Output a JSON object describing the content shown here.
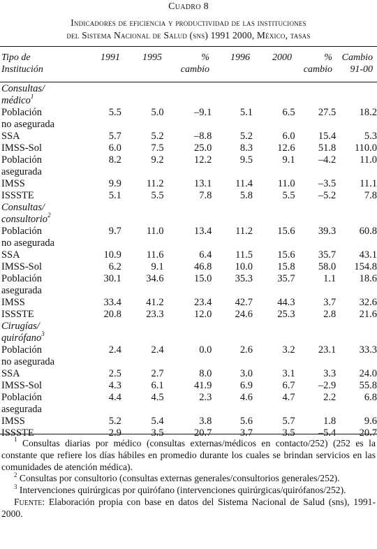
{
  "cuadro": "Cuadro 8",
  "title_line1": "Indicadores de eficiencia y productividad de las instituciones",
  "title_line2": "del Sistema Nacional de Salud (sns) 1991 2000, México, tasas",
  "headers": {
    "tipo_line1": "Tipo de",
    "tipo_line2": "Institución",
    "y1991": "1991",
    "y1995": "1995",
    "pct1_line1": "%",
    "pct1_line2": "cambio",
    "y1996": "1996",
    "y2000": "2000",
    "pct2_line1": "%",
    "pct2_line2": "cambio",
    "cambio_line1": "Cambio",
    "cambio_line2": "91-00"
  },
  "sections": [
    {
      "title_line1": "Consultas/",
      "title_line2": "médico",
      "sup": "1",
      "rows": [
        {
          "label1": "Población",
          "label2": "no asegurada",
          "values": [
            "5.5",
            "5.0",
            "–9.1",
            "5.1",
            "6.5",
            "27.5",
            "18.2"
          ]
        },
        {
          "label1": "SSA",
          "values": [
            "5.7",
            "5.2",
            "–8.8",
            "5.2",
            "6.0",
            "15.4",
            "5.3"
          ]
        },
        {
          "label1": "IMSS-Sol",
          "values": [
            "6.0",
            "7.5",
            "25.0",
            "8.3",
            "12.6",
            "51.8",
            "110.0"
          ]
        },
        {
          "label1": "Población",
          "label2": "asegurada",
          "values": [
            "8.2",
            "9.2",
            "12.2",
            "9.5",
            "9.1",
            "–4.2",
            "11.0"
          ]
        },
        {
          "label1": "IMSS",
          "values": [
            "9.9",
            "11.2",
            "13.1",
            "11.4",
            "11.0",
            "–3.5",
            "11.1"
          ]
        },
        {
          "label1": "ISSSTE",
          "values": [
            "5.1",
            "5.5",
            "7.8",
            "5.8",
            "5.5",
            "–5.2",
            "7.8"
          ]
        }
      ]
    },
    {
      "title_line1": "Consultas/",
      "title_line2": "consultorio",
      "sup": "2",
      "rows": [
        {
          "label1": "Población",
          "label2": "no asegurada",
          "values": [
            "9.7",
            "11.0",
            "13.4",
            "11.2",
            "15.6",
            "39.3",
            "60.8"
          ]
        },
        {
          "label1": "SSA",
          "values": [
            "10.9",
            "11.6",
            "6.4",
            "11.5",
            "15.6",
            "35.7",
            "43.1"
          ]
        },
        {
          "label1": "IMSS-Sol",
          "values": [
            "6.2",
            "9.1",
            "46.8",
            "10.0",
            "15.8",
            "58.0",
            "154.8"
          ]
        },
        {
          "label1": "Población",
          "label2": "asegurada",
          "values": [
            "30.1",
            "34.6",
            "15.0",
            "35.3",
            "35.7",
            "1.1",
            "18.6"
          ]
        },
        {
          "label1": "IMSS",
          "values": [
            "33.4",
            "41.2",
            "23.4",
            "42.7",
            "44.3",
            "3.7",
            "32.6"
          ]
        },
        {
          "label1": "ISSSTE",
          "values": [
            "20.8",
            "23.3",
            "12.0",
            "24.6",
            "25.3",
            "2.8",
            "21.6"
          ]
        }
      ]
    },
    {
      "title_line1": "Cirugías/",
      "title_line2": "quirófano",
      "sup": "3",
      "rows": [
        {
          "label1": "Población",
          "label2": "no asegurada",
          "values": [
            "2.4",
            "2.4",
            "0.0",
            "2.6",
            "3.2",
            "23.1",
            "33.3"
          ]
        },
        {
          "label1": "SSA",
          "values": [
            "2.5",
            "2.7",
            "8.0",
            "3.0",
            "3.1",
            "3.3",
            "24.0"
          ]
        },
        {
          "label1": "IMSS-Sol",
          "values": [
            "4.3",
            "6.1",
            "41.9",
            "6.9",
            "6.7",
            "–2.9",
            "55.8"
          ]
        },
        {
          "label1": "Población",
          "label2": "asegurada",
          "values": [
            "4.4",
            "4.5",
            "2.3",
            "4.6",
            "4.7",
            "2.2",
            "6.8"
          ]
        },
        {
          "label1": "IMSS",
          "values": [
            "5.2",
            "5.4",
            "3.8",
            "5.6",
            "5.7",
            "1.8",
            "9.6"
          ]
        },
        {
          "label1": "ISSSTE",
          "values": [
            "2.9",
            "3.5",
            "20.7",
            "3.7",
            "3.5",
            "–5.4",
            "20.7"
          ]
        }
      ]
    }
  ],
  "notes": [
    {
      "mark": "1",
      "text": "Consultas diarias por médico (consultas externas/médicos en contacto/252) (252 es la constante que refiere los días hábiles en promedio durante los cuales se brindan servicios en las comunidades de atención médica)."
    },
    {
      "mark": "2",
      "text": "Consultas por consultorio (consultas externas generales/consultorios generales/252)."
    },
    {
      "mark": "3",
      "text": "Intervenciones quirúrgicas por quirófano (intervenciones quirúrgicas/quirófanos/252)."
    }
  ],
  "fuente": {
    "label": "Fuente:",
    "text": "Elaboración propia con base en datos del Sistema Nacional de Salud (sns), 1991-2000."
  }
}
